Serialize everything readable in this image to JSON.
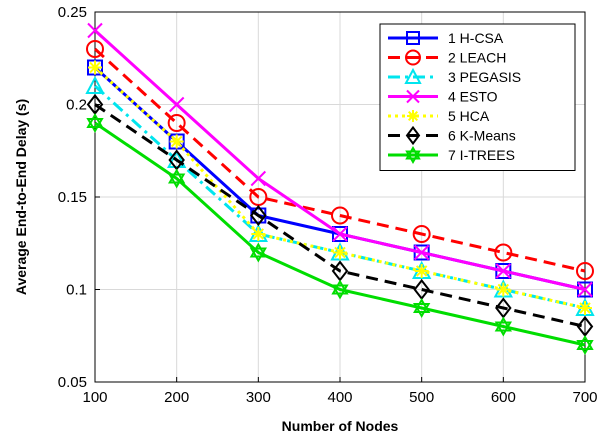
{
  "chart_data": {
    "type": "line",
    "title": "",
    "xlabel": "Number of Nodes",
    "ylabel": "Average End-to-End Delay (s)",
    "x": [
      100,
      200,
      300,
      400,
      500,
      600,
      700
    ],
    "xlim": [
      100,
      700
    ],
    "ylim": [
      0.05,
      0.25
    ],
    "x_ticks": [
      "100",
      "200",
      "300",
      "400",
      "500",
      "600",
      "700"
    ],
    "y_ticks": [
      0.05,
      0.1,
      0.15,
      0.2,
      0.25
    ],
    "y_tick_labels": [
      "0.05",
      "0.1",
      "0.15",
      "0.2",
      "0.25"
    ],
    "grid": true,
    "legend_position": "top-right",
    "series": [
      {
        "name": "1 H-CSA",
        "color": "#0000ff",
        "dash": "solid",
        "marker": "square",
        "values": [
          0.22,
          0.18,
          0.14,
          0.13,
          0.12,
          0.11,
          0.1
        ]
      },
      {
        "name": "2 LEACH",
        "color": "#ff0000",
        "dash": "dashed",
        "marker": "circle",
        "values": [
          0.23,
          0.19,
          0.15,
          0.14,
          0.13,
          0.12,
          0.11
        ]
      },
      {
        "name": "3 PEGASIS",
        "color": "#00e5ee",
        "dash": "dashdot",
        "marker": "triangle",
        "values": [
          0.21,
          0.17,
          0.13,
          0.12,
          0.11,
          0.1,
          0.09
        ]
      },
      {
        "name": "4 ESTO",
        "color": "#ff00ff",
        "dash": "solid",
        "marker": "x",
        "values": [
          0.24,
          0.2,
          0.16,
          0.13,
          0.12,
          0.11,
          0.1
        ]
      },
      {
        "name": "5 HCA",
        "color": "#ffff00",
        "dash": "dotted",
        "marker": "asterisk",
        "values": [
          0.22,
          0.18,
          0.13,
          0.12,
          0.11,
          0.1,
          0.09
        ]
      },
      {
        "name": "6 K-Means",
        "color": "#000000",
        "dash": "dashed",
        "marker": "diamond",
        "values": [
          0.2,
          0.17,
          0.14,
          0.11,
          0.1,
          0.09,
          0.08
        ]
      },
      {
        "name": "7 I-TREES",
        "color": "#00dd00",
        "dash": "solid",
        "marker": "hexagram",
        "values": [
          0.19,
          0.16,
          0.12,
          0.1,
          0.09,
          0.08,
          0.07
        ]
      }
    ]
  }
}
